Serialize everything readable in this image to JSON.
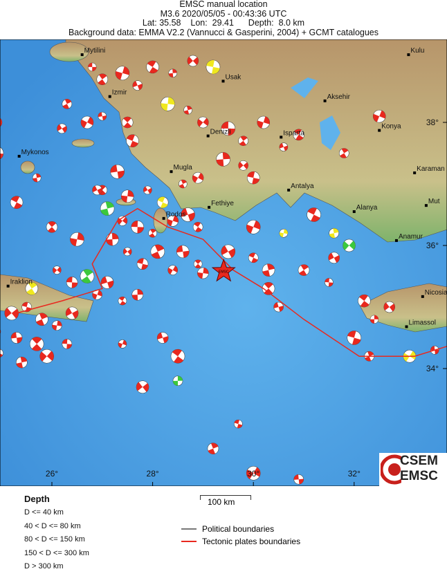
{
  "header": {
    "title": "EMSC manual location",
    "line2": "M3.6  2020/05/05 - 00:43:36 UTC",
    "line3": "Lat: 35.58    Lon:  29.41      Depth:  8.0 km",
    "line4": "Background data: EMMA V2.2 (Vannucci & Gasperini, 2004) + GCMT catalogues"
  },
  "main_event": {
    "lon": 29.41,
    "lat": 35.58,
    "label": "EMSC",
    "color": "#e8281e"
  },
  "axes": {
    "lon_ticks": [
      {
        "v": 26,
        "label": "26°"
      },
      {
        "v": 28,
        "label": "28°"
      },
      {
        "v": 30,
        "label": "30°"
      },
      {
        "v": 32,
        "label": "32°"
      }
    ],
    "lat_ticks": [
      {
        "v": 38,
        "label": "38°"
      },
      {
        "v": 36,
        "label": "36°"
      },
      {
        "v": 34,
        "label": "34°"
      }
    ]
  },
  "cities": [
    {
      "name": "Mytilini",
      "lon": 26.6,
      "lat": 39.1
    },
    {
      "name": "Izmir",
      "lon": 27.15,
      "lat": 38.42
    },
    {
      "name": "Usak",
      "lon": 29.4,
      "lat": 38.67
    },
    {
      "name": "Aksehir",
      "lon": 31.42,
      "lat": 38.35
    },
    {
      "name": "Konya",
      "lon": 32.5,
      "lat": 37.87
    },
    {
      "name": "Denizli",
      "lon": 29.1,
      "lat": 37.78
    },
    {
      "name": "Isparta",
      "lon": 30.55,
      "lat": 37.76
    },
    {
      "name": "Mugla",
      "lon": 28.37,
      "lat": 37.2
    },
    {
      "name": "Antalya",
      "lon": 30.7,
      "lat": 36.9
    },
    {
      "name": "Karaman",
      "lon": 33.2,
      "lat": 37.18
    },
    {
      "name": "Fethiye",
      "lon": 29.12,
      "lat": 36.62
    },
    {
      "name": "Alanya",
      "lon": 32.0,
      "lat": 36.55
    },
    {
      "name": "Mut",
      "lon": 33.43,
      "lat": 36.65
    },
    {
      "name": "Rodos",
      "lon": 28.22,
      "lat": 36.44
    },
    {
      "name": "Anamur",
      "lon": 32.84,
      "lat": 36.08
    },
    {
      "name": "Iraklion",
      "lon": 25.13,
      "lat": 35.34
    },
    {
      "name": "Nicosia",
      "lon": 33.36,
      "lat": 35.17
    },
    {
      "name": "Limassol",
      "lon": 33.04,
      "lat": 34.68
    },
    {
      "name": "Mykonos",
      "lon": 25.35,
      "lat": 37.45
    },
    {
      "name": "Kulu",
      "lon": 33.08,
      "lat": 39.1
    }
  ],
  "depth_colors": {
    "shallow": "#e8281e",
    "mid": "#f0e81e",
    "deep": "#3cc83c"
  },
  "events": [
    [
      26.8,
      38.9,
      "r"
    ],
    [
      27.0,
      38.7,
      "r"
    ],
    [
      27.4,
      38.8,
      "r"
    ],
    [
      27.7,
      38.6,
      "r"
    ],
    [
      28.0,
      38.9,
      "r"
    ],
    [
      28.4,
      38.8,
      "r"
    ],
    [
      28.8,
      39.0,
      "r"
    ],
    [
      29.2,
      38.9,
      "y"
    ],
    [
      26.3,
      38.3,
      "r"
    ],
    [
      26.7,
      38.0,
      "r"
    ],
    [
      27.0,
      38.1,
      "r"
    ],
    [
      27.5,
      38.0,
      "r"
    ],
    [
      28.3,
      38.3,
      "y"
    ],
    [
      26.2,
      37.9,
      "r"
    ],
    [
      27.6,
      37.7,
      "r"
    ],
    [
      28.7,
      38.2,
      "r"
    ],
    [
      29.0,
      38.0,
      "r"
    ],
    [
      29.5,
      37.9,
      "r"
    ],
    [
      29.8,
      37.7,
      "r"
    ],
    [
      30.2,
      38.0,
      "r"
    ],
    [
      30.6,
      37.6,
      "r"
    ],
    [
      30.9,
      37.8,
      "r"
    ],
    [
      29.4,
      37.4,
      "r"
    ],
    [
      29.8,
      37.3,
      "r"
    ],
    [
      30.0,
      37.1,
      "r"
    ],
    [
      28.6,
      37.0,
      "r"
    ],
    [
      28.9,
      37.1,
      "r"
    ],
    [
      27.3,
      37.2,
      "r"
    ],
    [
      27.0,
      36.9,
      "r"
    ],
    [
      27.5,
      36.8,
      "r"
    ],
    [
      27.9,
      36.9,
      "r"
    ],
    [
      28.2,
      36.7,
      "y"
    ],
    [
      27.1,
      36.6,
      "g"
    ],
    [
      27.4,
      36.4,
      "r"
    ],
    [
      27.7,
      36.3,
      "r"
    ],
    [
      28.0,
      36.2,
      "r"
    ],
    [
      28.4,
      36.4,
      "r"
    ],
    [
      28.7,
      36.5,
      "r"
    ],
    [
      28.9,
      36.3,
      "r"
    ],
    [
      27.2,
      36.1,
      "r"
    ],
    [
      27.5,
      35.9,
      "r"
    ],
    [
      27.8,
      35.7,
      "r"
    ],
    [
      28.1,
      35.9,
      "r"
    ],
    [
      28.4,
      35.6,
      "r"
    ],
    [
      28.6,
      35.9,
      "r"
    ],
    [
      28.9,
      35.7,
      "r"
    ],
    [
      29.0,
      35.55,
      "r"
    ],
    [
      29.5,
      35.9,
      "r"
    ],
    [
      30.0,
      35.8,
      "r"
    ],
    [
      30.3,
      35.6,
      "r"
    ],
    [
      26.1,
      35.6,
      "r"
    ],
    [
      26.4,
      35.4,
      "r"
    ],
    [
      26.7,
      35.5,
      "g"
    ],
    [
      26.9,
      35.2,
      "r"
    ],
    [
      27.1,
      35.4,
      "r"
    ],
    [
      27.4,
      35.1,
      "r"
    ],
    [
      27.7,
      35.2,
      "r"
    ],
    [
      25.2,
      34.9,
      "r"
    ],
    [
      25.5,
      35.0,
      "r"
    ],
    [
      25.8,
      34.8,
      "r"
    ],
    [
      24.9,
      34.6,
      "r"
    ],
    [
      25.3,
      34.5,
      "r"
    ],
    [
      25.7,
      34.4,
      "r"
    ],
    [
      26.1,
      34.7,
      "r"
    ],
    [
      26.4,
      34.9,
      "r"
    ],
    [
      24.95,
      34.25,
      "r"
    ],
    [
      25.4,
      34.1,
      "r"
    ],
    [
      25.9,
      34.2,
      "r"
    ],
    [
      26.3,
      34.4,
      "r"
    ],
    [
      25.6,
      35.3,
      "y"
    ],
    [
      27.4,
      34.4,
      "r"
    ],
    [
      28.2,
      34.5,
      "r"
    ],
    [
      28.5,
      34.2,
      "r"
    ],
    [
      28.5,
      33.8,
      "g"
    ],
    [
      27.8,
      33.7,
      "r"
    ],
    [
      29.7,
      33.1,
      "r"
    ],
    [
      29.2,
      32.7,
      "r"
    ],
    [
      30.0,
      32.3,
      "r"
    ],
    [
      30.9,
      32.2,
      "r"
    ],
    [
      30.3,
      35.3,
      "r"
    ],
    [
      30.6,
      36.2,
      "y"
    ],
    [
      31.6,
      35.8,
      "r"
    ],
    [
      31.2,
      36.5,
      "r"
    ],
    [
      31.6,
      36.2,
      "y"
    ],
    [
      31.9,
      36.0,
      "g"
    ],
    [
      31.5,
      35.4,
      "r"
    ],
    [
      31.0,
      35.6,
      "r"
    ],
    [
      30.0,
      36.3,
      "r"
    ],
    [
      30.5,
      35.0,
      "r"
    ],
    [
      32.2,
      35.1,
      "r"
    ],
    [
      32.4,
      34.8,
      "r"
    ],
    [
      32.7,
      35.0,
      "r"
    ],
    [
      32.0,
      34.5,
      "r"
    ],
    [
      32.3,
      34.2,
      "r"
    ],
    [
      33.1,
      34.2,
      "y"
    ],
    [
      33.6,
      34.3,
      "r"
    ],
    [
      26.0,
      36.3,
      "r"
    ],
    [
      26.5,
      36.1,
      "r"
    ],
    [
      26.9,
      36.9,
      "r"
    ],
    [
      25.3,
      36.7,
      "r"
    ],
    [
      25.7,
      37.1,
      "r"
    ],
    [
      24.9,
      38.0,
      "r"
    ],
    [
      24.9,
      37.5,
      "r"
    ],
    [
      31.8,
      37.5,
      "r"
    ],
    [
      32.5,
      38.1,
      "r"
    ]
  ],
  "plate_boundary": [
    [
      25.3,
      34.9
    ],
    [
      26.2,
      35.1
    ],
    [
      27.0,
      35.3
    ],
    [
      26.8,
      35.7
    ],
    [
      27.3,
      36.4
    ],
    [
      27.7,
      36.6
    ],
    [
      28.3,
      36.3
    ],
    [
      29.0,
      36.1
    ],
    [
      29.6,
      35.6
    ],
    [
      30.2,
      35.3
    ],
    [
      31.0,
      34.8
    ],
    [
      32.1,
      34.2
    ],
    [
      33.2,
      34.2
    ],
    [
      34.0,
      34.4
    ]
  ],
  "legend": {
    "depth_title": "Depth",
    "depth_classes": [
      "D <= 40 km",
      "40 < D <= 80 km",
      "80 < D <= 150 km",
      "150 < D <= 300 km",
      "D > 300 km"
    ],
    "scale": "100 km",
    "political": "Political boundaries",
    "political_color": "#777777",
    "tectonic": "Tectonic plates boundaries",
    "tectonic_color": "#e8281e"
  },
  "logo": {
    "line1": "CSEM",
    "line2": "EMSC"
  }
}
